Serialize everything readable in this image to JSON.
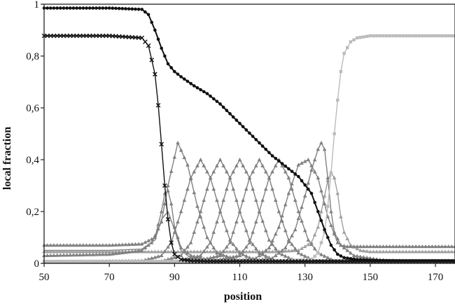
{
  "chart_data": {
    "type": "line",
    "title": "",
    "xlabel": "position",
    "ylabel": "local fraction",
    "xlim": [
      50,
      176
    ],
    "ylim": [
      0,
      1
    ],
    "x_ticks": [
      50,
      70,
      90,
      110,
      130,
      150,
      170
    ],
    "x_tick_labels": [
      "50",
      "70",
      "90",
      "110",
      "130",
      "150",
      "170"
    ],
    "y_ticks": [
      0,
      0.2,
      0.4,
      0.6,
      0.8,
      1
    ],
    "y_tick_labels": [
      "0",
      "0,2",
      "0,4",
      "0,6",
      "0,8",
      "1"
    ],
    "grid": false,
    "legend": "none",
    "series": [
      {
        "color": "#111111",
        "marker": "dot",
        "x": [
          50,
          60,
          70,
          80,
          82,
          84,
          86,
          88,
          90,
          92,
          96,
          100,
          104,
          108,
          112,
          116,
          120,
          124,
          128,
          132,
          134,
          136,
          138,
          140,
          142,
          146,
          150,
          160,
          176
        ],
        "y": [
          0.985,
          0.985,
          0.985,
          0.98,
          0.96,
          0.9,
          0.83,
          0.77,
          0.74,
          0.72,
          0.685,
          0.655,
          0.615,
          0.565,
          0.515,
          0.465,
          0.415,
          0.375,
          0.335,
          0.27,
          0.2,
          0.13,
          0.07,
          0.035,
          0.022,
          0.015,
          0.012,
          0.01,
          0.01
        ]
      },
      {
        "color": "#111111",
        "marker": "x",
        "x": [
          50,
          70,
          80,
          82,
          84,
          85,
          86,
          87,
          88,
          89,
          90,
          92,
          95,
          100,
          120,
          150,
          176
        ],
        "y": [
          0.878,
          0.878,
          0.87,
          0.84,
          0.73,
          0.61,
          0.46,
          0.3,
          0.17,
          0.08,
          0.035,
          0.015,
          0.01,
          0.008,
          0.008,
          0.008,
          0.008
        ]
      },
      {
        "color": "#bbbbbb",
        "marker": "square",
        "x": [
          50,
          120,
          132,
          134,
          136,
          137,
          138,
          139,
          140,
          141,
          142,
          144,
          146,
          150,
          160,
          176
        ],
        "y": [
          0.008,
          0.008,
          0.015,
          0.04,
          0.12,
          0.22,
          0.35,
          0.5,
          0.63,
          0.74,
          0.81,
          0.855,
          0.87,
          0.878,
          0.878,
          0.878
        ]
      },
      {
        "color": "#808080",
        "marker": "tri",
        "x": [
          50,
          70,
          80,
          84,
          86,
          87,
          88,
          89,
          90,
          92,
          95,
          100,
          120,
          150,
          176
        ],
        "y": [
          0.07,
          0.07,
          0.075,
          0.1,
          0.2,
          0.27,
          0.28,
          0.23,
          0.14,
          0.06,
          0.03,
          0.015,
          0.01,
          0.01,
          0.01
        ]
      },
      {
        "color": "#808080",
        "marker": "tri",
        "x": [
          50,
          70,
          80,
          83,
          86,
          88,
          91,
          94,
          97,
          100,
          103,
          110,
          120,
          176
        ],
        "y": [
          0.03,
          0.035,
          0.05,
          0.08,
          0.16,
          0.3,
          0.465,
          0.38,
          0.22,
          0.1,
          0.04,
          0.01,
          0.005,
          0.005
        ]
      },
      {
        "color": "#808080",
        "marker": "tri",
        "x": [
          50,
          80,
          86,
          89,
          92,
          95,
          98,
          101,
          104,
          107,
          110,
          115,
          130,
          176
        ],
        "y": [
          0.005,
          0.01,
          0.03,
          0.08,
          0.2,
          0.33,
          0.4,
          0.33,
          0.2,
          0.09,
          0.04,
          0.01,
          0.005,
          0.005
        ]
      },
      {
        "color": "#808080",
        "marker": "tri",
        "x": [
          50,
          85,
          92,
          95,
          98,
          101,
          104,
          107,
          110,
          113,
          116,
          121,
          130,
          176
        ],
        "y": [
          0.005,
          0.005,
          0.03,
          0.08,
          0.2,
          0.33,
          0.4,
          0.33,
          0.2,
          0.09,
          0.04,
          0.01,
          0.005,
          0.005
        ]
      },
      {
        "color": "#808080",
        "marker": "tri",
        "x": [
          50,
          90,
          98,
          101,
          104,
          107,
          110,
          113,
          116,
          119,
          122,
          127,
          140,
          176
        ],
        "y": [
          0.005,
          0.005,
          0.03,
          0.08,
          0.2,
          0.33,
          0.4,
          0.33,
          0.2,
          0.09,
          0.04,
          0.01,
          0.005,
          0.005
        ]
      },
      {
        "color": "#808080",
        "marker": "tri",
        "x": [
          50,
          95,
          104,
          107,
          110,
          113,
          116,
          119,
          122,
          125,
          128,
          133,
          145,
          176
        ],
        "y": [
          0.005,
          0.005,
          0.03,
          0.08,
          0.2,
          0.33,
          0.4,
          0.33,
          0.2,
          0.09,
          0.04,
          0.01,
          0.005,
          0.005
        ]
      },
      {
        "color": "#808080",
        "marker": "tri",
        "x": [
          50,
          100,
          110,
          113,
          116,
          119,
          122,
          125,
          128,
          131,
          134,
          139,
          150,
          176
        ],
        "y": [
          0.005,
          0.005,
          0.03,
          0.08,
          0.2,
          0.33,
          0.4,
          0.33,
          0.2,
          0.09,
          0.04,
          0.01,
          0.005,
          0.005
        ]
      },
      {
        "color": "#808080",
        "marker": "tri",
        "x": [
          50,
          105,
          115,
          119,
          122,
          125,
          128,
          131,
          134,
          137,
          140,
          145,
          155,
          176
        ],
        "y": [
          0.005,
          0.005,
          0.02,
          0.06,
          0.14,
          0.27,
          0.38,
          0.4,
          0.33,
          0.18,
          0.08,
          0.03,
          0.01,
          0.01
        ]
      },
      {
        "color": "#808080",
        "marker": "tri",
        "x": [
          50,
          110,
          120,
          124,
          127,
          130,
          132,
          134,
          135,
          136,
          137,
          138,
          139,
          141,
          143,
          146,
          150,
          160,
          176
        ],
        "y": [
          0.005,
          0.005,
          0.02,
          0.06,
          0.13,
          0.26,
          0.36,
          0.44,
          0.465,
          0.44,
          0.33,
          0.2,
          0.12,
          0.07,
          0.065,
          0.065,
          0.065,
          0.065,
          0.065
        ]
      },
      {
        "color": "#a0a0a0",
        "marker": "tri",
        "x": [
          50,
          120,
          128,
          132,
          134,
          136,
          137,
          138,
          139,
          140,
          141,
          142,
          144,
          147,
          150,
          160,
          176
        ],
        "y": [
          0.045,
          0.045,
          0.05,
          0.08,
          0.14,
          0.26,
          0.32,
          0.35,
          0.33,
          0.27,
          0.18,
          0.12,
          0.07,
          0.05,
          0.045,
          0.045,
          0.045
        ]
      },
      {
        "color": "#808080",
        "marker": "none",
        "x": [
          50,
          70,
          80,
          84,
          86,
          88,
          90,
          92,
          95,
          100,
          176
        ],
        "y": [
          0.05,
          0.05,
          0.055,
          0.09,
          0.17,
          0.2,
          0.13,
          0.05,
          0.02,
          0.01,
          0.01
        ]
      }
    ]
  }
}
